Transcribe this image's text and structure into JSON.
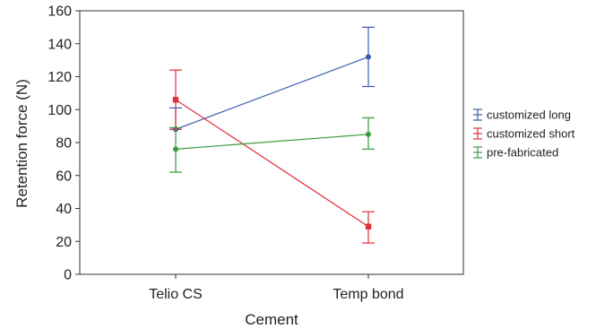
{
  "chart_data": {
    "type": "line",
    "xlabel": "Cement",
    "ylabel": "Retention force (N)",
    "categories": [
      "Telio CS",
      "Temp bond"
    ],
    "ylim": [
      0,
      160
    ],
    "yticks": [
      0,
      20,
      40,
      60,
      80,
      100,
      120,
      140,
      160
    ],
    "grid": false,
    "legend_position": "right",
    "error_bars": true,
    "series": [
      {
        "name": "customized long",
        "color": "#3a5bb0",
        "marker": "circle",
        "values": [
          88,
          132
        ],
        "errors": [
          [
            88,
            101
          ],
          [
            114,
            150
          ]
        ]
      },
      {
        "name": "customized short",
        "color": "#e0303a",
        "marker": "square",
        "values": [
          106,
          29
        ],
        "errors": [
          [
            88,
            124
          ],
          [
            19,
            38
          ]
        ]
      },
      {
        "name": "pre-fabricated",
        "color": "#3a9a3e",
        "marker": "circle",
        "values": [
          76,
          85
        ],
        "errors": [
          [
            62,
            89
          ],
          [
            76,
            95
          ]
        ]
      }
    ]
  }
}
